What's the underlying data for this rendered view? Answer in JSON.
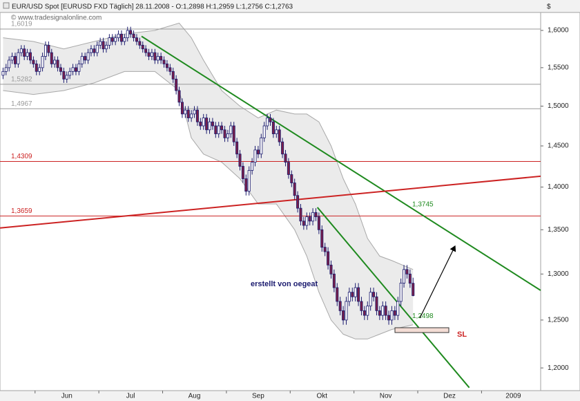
{
  "chart_data": {
    "type": "candlestick",
    "title": "EUR/USD Spot [EURUSD FXD  Täglich] 28.11.2008 - O:1,2898 H:1,2959 L:1,2756 C:1,2763",
    "watermark": "© www.tradesignalonline.com",
    "y_unit": "$",
    "log_scale": true,
    "ylim": [
      1.177,
      1.6247
    ],
    "yticks": [
      {
        "value": 1.2,
        "label": "1,2000"
      },
      {
        "value": 1.25,
        "label": "1,2500"
      },
      {
        "value": 1.3,
        "label": "1,3000"
      },
      {
        "value": 1.35,
        "label": "1,3500"
      },
      {
        "value": 1.4,
        "label": "1,4000"
      },
      {
        "value": 1.45,
        "label": "1,4500"
      },
      {
        "value": 1.5,
        "label": "1,5000"
      },
      {
        "value": 1.55,
        "label": "1,5500"
      },
      {
        "value": 1.6,
        "label": "1,6000"
      }
    ],
    "xlim": [
      -1,
      177
    ],
    "xticks": [
      {
        "value": 21,
        "label": "Jun"
      },
      {
        "value": 42,
        "label": "Jul"
      },
      {
        "value": 63,
        "label": "Aug"
      },
      {
        "value": 84,
        "label": "Sep"
      },
      {
        "value": 105,
        "label": "Okt"
      },
      {
        "value": 126,
        "label": "Nov"
      },
      {
        "value": 147,
        "label": "Dez"
      },
      {
        "value": 168,
        "label": "2009"
      }
    ],
    "up_color": "#ffffff",
    "down_color": "#7a1f4a",
    "outline_color": "#1a1a6e",
    "open": [
      1.54,
      1.545,
      1.55,
      1.56,
      1.565,
      1.555,
      1.57,
      1.575,
      1.565,
      1.57,
      1.56,
      1.555,
      1.545,
      1.55,
      1.565,
      1.58,
      1.57,
      1.555,
      1.56,
      1.55,
      1.545,
      1.535,
      1.54,
      1.545,
      1.55,
      1.545,
      1.555,
      1.565,
      1.56,
      1.57,
      1.575,
      1.57,
      1.58,
      1.585,
      1.575,
      1.58,
      1.59,
      1.585,
      1.59,
      1.595,
      1.585,
      1.59,
      1.6,
      1.595,
      1.59,
      1.585,
      1.58,
      1.575,
      1.57,
      1.565,
      1.57,
      1.56,
      1.565,
      1.56,
      1.555,
      1.55,
      1.545,
      1.535,
      1.52,
      1.505,
      1.49,
      1.495,
      1.485,
      1.49,
      1.495,
      1.48,
      1.475,
      1.485,
      1.47,
      1.48,
      1.475,
      1.465,
      1.475,
      1.47,
      1.46,
      1.465,
      1.475,
      1.455,
      1.44,
      1.425,
      1.41,
      1.395,
      1.42,
      1.43,
      1.445,
      1.44,
      1.46,
      1.475,
      1.485,
      1.48,
      1.465,
      1.47,
      1.455,
      1.44,
      1.43,
      1.415,
      1.405,
      1.39,
      1.375,
      1.36,
      1.355,
      1.365,
      1.36,
      1.37,
      1.365,
      1.35,
      1.33,
      1.325,
      1.31,
      1.3,
      1.285,
      1.27,
      1.26,
      1.25,
      1.27,
      1.28,
      1.275,
      1.285,
      1.27,
      1.26,
      1.255,
      1.265,
      1.28,
      1.275,
      1.26,
      1.255,
      1.265,
      1.255,
      1.25,
      1.26,
      1.255,
      1.27,
      1.29,
      1.305,
      1.3,
      1.2898
    ],
    "high": [
      1.55,
      1.555,
      1.565,
      1.57,
      1.57,
      1.575,
      1.58,
      1.58,
      1.575,
      1.575,
      1.565,
      1.56,
      1.555,
      1.57,
      1.585,
      1.585,
      1.575,
      1.565,
      1.565,
      1.555,
      1.55,
      1.545,
      1.55,
      1.555,
      1.555,
      1.56,
      1.57,
      1.57,
      1.575,
      1.58,
      1.58,
      1.585,
      1.59,
      1.59,
      1.585,
      1.595,
      1.595,
      1.595,
      1.6,
      1.6,
      1.595,
      1.605,
      1.605,
      1.6,
      1.595,
      1.59,
      1.585,
      1.58,
      1.575,
      1.575,
      1.575,
      1.57,
      1.57,
      1.565,
      1.56,
      1.555,
      1.55,
      1.54,
      1.525,
      1.51,
      1.5,
      1.5,
      1.495,
      1.5,
      1.5,
      1.485,
      1.49,
      1.49,
      1.485,
      1.485,
      1.48,
      1.48,
      1.48,
      1.475,
      1.47,
      1.48,
      1.48,
      1.46,
      1.445,
      1.43,
      1.415,
      1.425,
      1.435,
      1.45,
      1.45,
      1.465,
      1.48,
      1.49,
      1.49,
      1.485,
      1.475,
      1.475,
      1.46,
      1.445,
      1.435,
      1.42,
      1.41,
      1.395,
      1.38,
      1.365,
      1.37,
      1.37,
      1.375,
      1.375,
      1.37,
      1.355,
      1.335,
      1.33,
      1.315,
      1.305,
      1.29,
      1.275,
      1.265,
      1.275,
      1.285,
      1.285,
      1.29,
      1.29,
      1.275,
      1.265,
      1.27,
      1.285,
      1.285,
      1.28,
      1.265,
      1.27,
      1.27,
      1.26,
      1.265,
      1.265,
      1.275,
      1.295,
      1.31,
      1.31,
      1.305,
      1.2959
    ],
    "low": [
      1.535,
      1.54,
      1.545,
      1.555,
      1.55,
      1.55,
      1.565,
      1.56,
      1.56,
      1.555,
      1.55,
      1.54,
      1.54,
      1.545,
      1.56,
      1.565,
      1.55,
      1.55,
      1.545,
      1.54,
      1.53,
      1.53,
      1.535,
      1.54,
      1.54,
      1.54,
      1.55,
      1.555,
      1.555,
      1.565,
      1.565,
      1.565,
      1.575,
      1.57,
      1.57,
      1.575,
      1.58,
      1.58,
      1.585,
      1.58,
      1.58,
      1.585,
      1.59,
      1.585,
      1.58,
      1.575,
      1.57,
      1.565,
      1.56,
      1.56,
      1.555,
      1.555,
      1.555,
      1.55,
      1.545,
      1.54,
      1.53,
      1.515,
      1.5,
      1.485,
      1.485,
      1.48,
      1.48,
      1.485,
      1.475,
      1.47,
      1.47,
      1.465,
      1.465,
      1.47,
      1.46,
      1.46,
      1.465,
      1.455,
      1.455,
      1.46,
      1.45,
      1.435,
      1.42,
      1.405,
      1.39,
      1.39,
      1.415,
      1.425,
      1.435,
      1.435,
      1.455,
      1.47,
      1.475,
      1.46,
      1.46,
      1.45,
      1.435,
      1.425,
      1.41,
      1.4,
      1.385,
      1.37,
      1.355,
      1.35,
      1.35,
      1.355,
      1.355,
      1.36,
      1.345,
      1.325,
      1.32,
      1.305,
      1.295,
      1.28,
      1.265,
      1.255,
      1.245,
      1.245,
      1.265,
      1.27,
      1.27,
      1.265,
      1.255,
      1.25,
      1.25,
      1.26,
      1.27,
      1.255,
      1.25,
      1.25,
      1.25,
      1.245,
      1.245,
      1.25,
      1.25,
      1.265,
      1.285,
      1.295,
      1.2848,
      1.2756
    ],
    "close": [
      1.545,
      1.55,
      1.56,
      1.565,
      1.555,
      1.57,
      1.575,
      1.565,
      1.57,
      1.56,
      1.555,
      1.545,
      1.55,
      1.565,
      1.58,
      1.57,
      1.555,
      1.56,
      1.55,
      1.545,
      1.535,
      1.54,
      1.545,
      1.55,
      1.545,
      1.555,
      1.565,
      1.56,
      1.57,
      1.575,
      1.57,
      1.58,
      1.585,
      1.575,
      1.58,
      1.59,
      1.585,
      1.59,
      1.595,
      1.585,
      1.59,
      1.6,
      1.595,
      1.59,
      1.585,
      1.58,
      1.575,
      1.57,
      1.565,
      1.57,
      1.56,
      1.565,
      1.56,
      1.555,
      1.55,
      1.545,
      1.535,
      1.52,
      1.505,
      1.49,
      1.495,
      1.485,
      1.49,
      1.495,
      1.48,
      1.475,
      1.485,
      1.47,
      1.48,
      1.475,
      1.465,
      1.475,
      1.47,
      1.46,
      1.465,
      1.475,
      1.455,
      1.44,
      1.425,
      1.41,
      1.395,
      1.42,
      1.43,
      1.445,
      1.44,
      1.46,
      1.475,
      1.485,
      1.48,
      1.465,
      1.47,
      1.455,
      1.44,
      1.43,
      1.415,
      1.405,
      1.39,
      1.375,
      1.36,
      1.355,
      1.365,
      1.36,
      1.37,
      1.365,
      1.35,
      1.33,
      1.325,
      1.31,
      1.3,
      1.285,
      1.27,
      1.26,
      1.25,
      1.27,
      1.28,
      1.275,
      1.285,
      1.27,
      1.26,
      1.255,
      1.265,
      1.28,
      1.275,
      1.26,
      1.255,
      1.265,
      1.255,
      1.25,
      1.26,
      1.255,
      1.27,
      1.29,
      1.305,
      1.3,
      1.2898,
      1.2763
    ],
    "bands": {
      "x": [
        0,
        10,
        20,
        30,
        40,
        50,
        58,
        62,
        66,
        72,
        78,
        84,
        90,
        96,
        100,
        104,
        108,
        112,
        116,
        120,
        124,
        128,
        135
      ],
      "upper": [
        1.59,
        1.585,
        1.575,
        1.585,
        1.595,
        1.6,
        1.61,
        1.59,
        1.56,
        1.52,
        1.5,
        1.485,
        1.495,
        1.49,
        1.49,
        1.48,
        1.45,
        1.41,
        1.38,
        1.34,
        1.32,
        1.315,
        1.305
      ],
      "lower": [
        1.52,
        1.515,
        1.52,
        1.53,
        1.545,
        1.545,
        1.52,
        1.46,
        1.44,
        1.43,
        1.41,
        1.38,
        1.38,
        1.35,
        1.32,
        1.28,
        1.25,
        1.235,
        1.23,
        1.23,
        1.235,
        1.24,
        1.245
      ]
    },
    "levels": [
      {
        "value": 1.6019,
        "label": "1,6019",
        "color": "#999999"
      },
      {
        "value": 1.5282,
        "label": "1,5282",
        "color": "#999999"
      },
      {
        "value": 1.4967,
        "label": "1,4967",
        "color": "#999999"
      },
      {
        "value": 1.4309,
        "label": "1,4309",
        "color": "#cc2222"
      },
      {
        "value": 1.3659,
        "label": "1,3659",
        "color": "#cc2222"
      }
    ],
    "trendlines": [
      {
        "x": [
          45.6,
          177
        ],
        "y": [
          1.592,
          1.282
        ],
        "color": "#1f8a1f",
        "label": "1,3745",
        "label_value": 1.3745
      },
      {
        "x": [
          103.5,
          153.5
        ],
        "y": [
          1.376,
          1.18
        ],
        "color": "#1f8a1f",
        "label": "1,2498",
        "label_value": 1.2498
      },
      {
        "x": [
          -1,
          177
        ],
        "y": [
          1.352,
          1.413
        ],
        "color": "#cc2222"
      }
    ],
    "author_note": "erstellt von oegeat",
    "stop_loss_label": "SL"
  }
}
